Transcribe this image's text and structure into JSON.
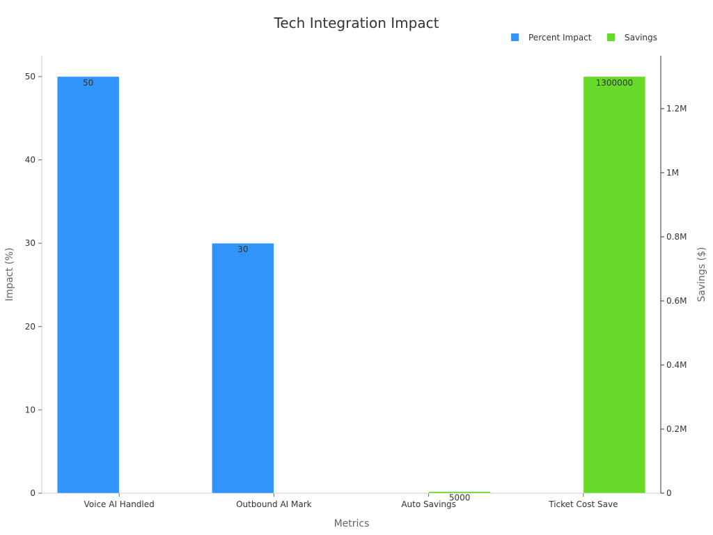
{
  "chart_data": {
    "type": "bar",
    "title": "Tech Integration Impact",
    "xlabel": "Metrics",
    "ylabel_left": "Impact (%)",
    "ylabel_right": "Savings ($)",
    "categories": [
      "Voice AI Handled",
      "Outbound AI Mark",
      "Auto Savings",
      "Ticket Cost Save"
    ],
    "series": [
      {
        "name": "Percent Impact",
        "axis": "left",
        "color": "#3094fb",
        "values": [
          50,
          30,
          null,
          null
        ],
        "labels": [
          "50",
          "30",
          "",
          ""
        ]
      },
      {
        "name": "Savings",
        "axis": "right",
        "color": "#66d929",
        "values": [
          null,
          null,
          5000,
          1300000
        ],
        "labels": [
          "",
          "",
          "5000",
          "1300000"
        ]
      }
    ],
    "ylim_left": [
      0,
      52.5
    ],
    "yticks_left": [
      0,
      10,
      20,
      30,
      40,
      50
    ],
    "ylim_right": [
      0,
      1365000
    ],
    "yticks_right": [
      0,
      200000,
      400000,
      600000,
      800000,
      1000000,
      1200000
    ],
    "yticklabels_right": [
      "0",
      "0.2M",
      "0.4M",
      "0.6M",
      "0.8M",
      "1M",
      "1.2M"
    ],
    "legend_position": "top-right",
    "grid": false
  }
}
